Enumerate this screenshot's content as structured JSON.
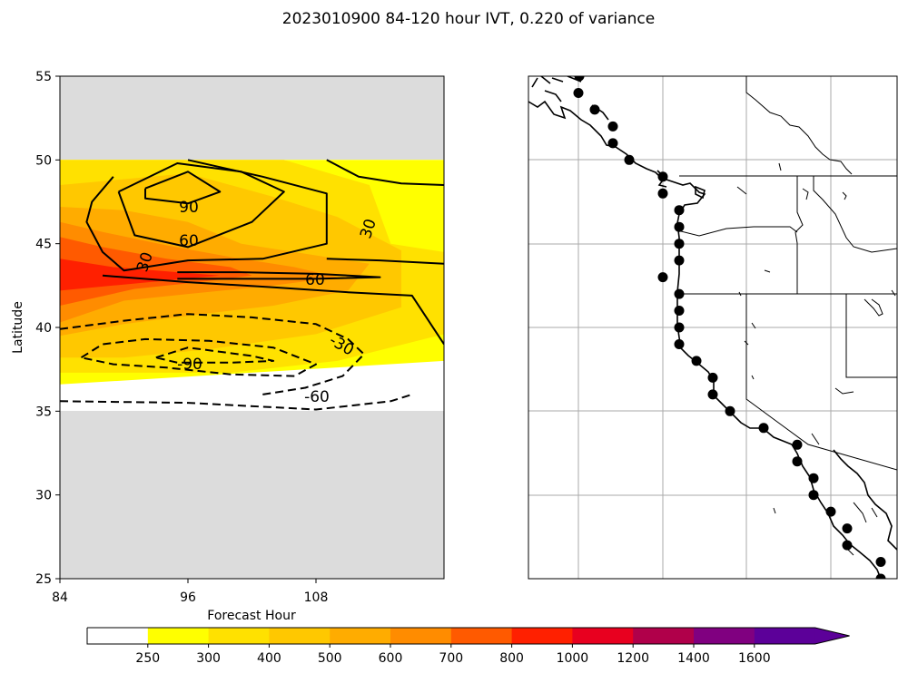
{
  "title": "2023010900 84-120 hour IVT, 0.220 of variance",
  "chart_data": [
    {
      "type": "contour",
      "xlabel": "Forecast Hour",
      "ylabel": "Latitude",
      "xlim": [
        84,
        120
      ],
      "ylim": [
        25,
        55
      ],
      "xticks": [
        84,
        96,
        108
      ],
      "yticks": [
        25,
        30,
        35,
        40,
        45,
        50,
        55
      ],
      "masked_latitudes": [
        "25-35",
        "50-55"
      ],
      "filled_field_units": "IVT",
      "contour_labels": [
        "90",
        "60",
        "30",
        "60",
        "-30",
        "-90",
        "-60"
      ],
      "filled_regions": [
        {
          "level": 250,
          "poly": [
            [
              84,
              36.6
            ],
            [
              84,
              50
            ],
            [
              120,
              50
            ],
            [
              120,
              38
            ]
          ]
        },
        {
          "level": 300,
          "poly": [
            [
              84,
              37.3
            ],
            [
              84,
              50
            ],
            [
              105,
              50
            ],
            [
              113,
              48.5
            ],
            [
              115,
              45
            ],
            [
              120,
              44.5
            ],
            [
              120,
              39.6
            ],
            [
              110,
              38
            ],
            [
              100,
              37.3
            ]
          ]
        },
        {
          "level": 400,
          "poly": [
            [
              84,
              38.2
            ],
            [
              84,
              48.5
            ],
            [
              96,
              49.2
            ],
            [
              104,
              47.8
            ],
            [
              110,
              46.6
            ],
            [
              116,
              44.6
            ],
            [
              116,
              41.2
            ],
            [
              108,
              39.6
            ],
            [
              98,
              38.7
            ],
            [
              90,
              38.2
            ]
          ]
        },
        {
          "level": 500,
          "poly": [
            [
              84,
              39.5
            ],
            [
              84,
              47.2
            ],
            [
              90,
              47
            ],
            [
              96,
              46.3
            ],
            [
              101,
              45
            ],
            [
              107,
              44.4
            ],
            [
              113,
              43.8
            ],
            [
              111,
              42.2
            ],
            [
              104,
              41.3
            ],
            [
              96,
              40.7
            ],
            [
              90,
              40.2
            ]
          ]
        },
        {
          "level": 600,
          "poly": [
            [
              84,
              40.3
            ],
            [
              84,
              46.3
            ],
            [
              88,
              45.7
            ],
            [
              94,
              44.9
            ],
            [
              100,
              44.2
            ],
            [
              106,
              43.6
            ],
            [
              110,
              43
            ],
            [
              104,
              42.5
            ],
            [
              96,
              42
            ],
            [
              90,
              41.6
            ]
          ]
        },
        {
          "level": 700,
          "poly": [
            [
              84,
              41.3
            ],
            [
              84,
              45.4
            ],
            [
              88,
              44.8
            ],
            [
              94,
              44.1
            ],
            [
              100,
              43.6
            ],
            [
              102,
              43.1
            ],
            [
              97,
              42.7
            ],
            [
              91,
              42.3
            ]
          ]
        },
        {
          "level": 800,
          "poly": [
            [
              84,
              42.2
            ],
            [
              84,
              44.1
            ],
            [
              89,
              43.6
            ],
            [
              95,
              43.3
            ],
            [
              99,
              43.1
            ],
            [
              94,
              42.8
            ],
            [
              89,
              42.5
            ]
          ]
        }
      ],
      "contours": [
        {
          "level": 90,
          "style": "solid",
          "points": [
            [
              92,
              48.3
            ],
            [
              96,
              49.3
            ],
            [
              99,
              48.1
            ],
            [
              96,
              47.4
            ],
            [
              92,
              47.7
            ],
            [
              92,
              48.3
            ]
          ]
        },
        {
          "level": 60,
          "style": "solid",
          "points": [
            [
              89.5,
              48.1
            ],
            [
              95,
              49.8
            ],
            [
              101,
              49.3
            ],
            [
              105,
              48.1
            ],
            [
              102,
              46.3
            ],
            [
              96,
              44.8
            ],
            [
              91,
              45.5
            ],
            [
              89.5,
              48.1
            ]
          ]
        },
        {
          "level": 30,
          "style": "solid",
          "points": [
            [
              96,
              50
            ],
            [
              103,
              49
            ],
            [
              109,
              48
            ],
            [
              109,
              45
            ],
            [
              103,
              44.1
            ],
            [
              96,
              44
            ],
            [
              90,
              43.4
            ],
            [
              88,
              44.5
            ],
            [
              86.5,
              46.3
            ],
            [
              87,
              47.5
            ],
            [
              89,
              49
            ]
          ]
        },
        {
          "level": 60,
          "style": "solid",
          "points": [
            [
              95,
              43.3
            ],
            [
              101,
              43.3
            ],
            [
              108,
              43.2
            ],
            [
              114,
              43
            ],
            [
              108,
              42.9
            ],
            [
              100,
              42.9
            ],
            [
              95,
              42.9
            ]
          ]
        },
        {
          "level": 30,
          "style": "solid",
          "points": [
            [
              88,
              43.1
            ],
            [
              96,
              42.7
            ],
            [
              104,
              42.4
            ],
            [
              111,
              42.1
            ],
            [
              117,
              41.9
            ],
            [
              120,
              39
            ]
          ]
        },
        {
          "level": 30,
          "style": "solid",
          "points": [
            [
              109,
              50
            ],
            [
              112,
              49
            ],
            [
              116,
              48.6
            ],
            [
              120,
              48.5
            ]
          ]
        },
        {
          "level": 30,
          "style": "solid",
          "points": [
            [
              109,
              44.1
            ],
            [
              114,
              44
            ],
            [
              120,
              43.8
            ]
          ]
        },
        {
          "level": -30,
          "style": "dashed",
          "points": [
            [
              84,
              39.9
            ],
            [
              90,
              40.4
            ],
            [
              96,
              40.8
            ],
            [
              102,
              40.6
            ],
            [
              108,
              40.2
            ],
            [
              111,
              39.3
            ],
            [
              112.5,
              38.4
            ],
            [
              110.5,
              37.1
            ],
            [
              107,
              36.4
            ],
            [
              103,
              36
            ]
          ]
        },
        {
          "level": -60,
          "style": "dashed",
          "points": [
            [
              86,
              38.2
            ],
            [
              88,
              39
            ],
            [
              92,
              39.3
            ],
            [
              98,
              39.2
            ],
            [
              104,
              38.8
            ],
            [
              108,
              37.8
            ],
            [
              106,
              37.1
            ],
            [
              100,
              37.2
            ],
            [
              94,
              37.6
            ],
            [
              89,
              37.8
            ],
            [
              86,
              38.2
            ]
          ]
        },
        {
          "level": -90,
          "style": "dashed",
          "points": [
            [
              93,
              38.2
            ],
            [
              96,
              38.8
            ],
            [
              102,
              38.3
            ],
            [
              104,
              38
            ],
            [
              100,
              37.9
            ],
            [
              95,
              37.9
            ],
            [
              93,
              38.2
            ]
          ]
        },
        {
          "level": -30,
          "style": "dashed",
          "points": [
            [
              84,
              35.6
            ],
            [
              96,
              35.5
            ],
            [
              108,
              35.1
            ],
            [
              115,
              35.6
            ],
            [
              117,
              36
            ]
          ]
        }
      ]
    },
    {
      "type": "map",
      "region": "US West Coast",
      "marker": "filled-circle",
      "points_lat": [
        55,
        54,
        53,
        52,
        51,
        50,
        49,
        48,
        47,
        46,
        45,
        44,
        43,
        42,
        41,
        40,
        39,
        38,
        37,
        36,
        35,
        34,
        33,
        32,
        31,
        30,
        29,
        28,
        27,
        26,
        25
      ]
    }
  ],
  "colorbar": {
    "ticks": [
      "250",
      "300",
      "400",
      "500",
      "600",
      "700",
      "800",
      "1000",
      "1200",
      "1400",
      "1600"
    ],
    "colors": [
      "#ffffff",
      "#ffff00",
      "#ffe100",
      "#ffc800",
      "#ffac00",
      "#ff8c00",
      "#ff5a00",
      "#ff2000",
      "#e8001f",
      "#b0004a",
      "#800080",
      "#5c0099"
    ]
  }
}
